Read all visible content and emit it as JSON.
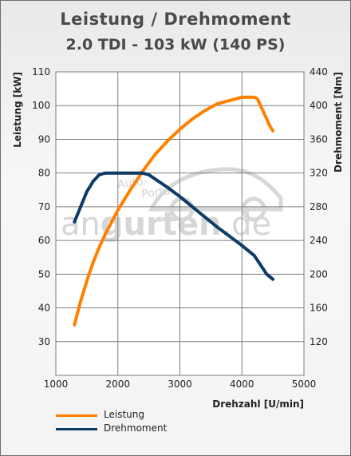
{
  "title": "Leistung / Drehmoment",
  "subtitle": "2.0 TDI - 103 kW (140 PS)",
  "watermark": {
    "line1": "Auto-",
    "line2": "Portal",
    "text_pre": "an",
    "text_mid": "gurten",
    "text_post": ".de"
  },
  "colors": {
    "leistung": "#ff8000",
    "drehmoment": "#0e3a66",
    "grid": "#7d7d7d",
    "plot_bg": "#ffffff",
    "text": "#4a4a4a"
  },
  "chart_data": {
    "type": "line",
    "title": "Leistung / Drehmoment",
    "subtitle": "2.0 TDI - 103 kW (140 PS)",
    "xlabel": "Drehzahl [U/min]",
    "ylabel": "Leistung [kW]",
    "y2label": "Drehmoment [Nm]",
    "xlim": [
      1000,
      5000
    ],
    "ylim": [
      20,
      110
    ],
    "y2lim": [
      80,
      440
    ],
    "x_ticks": [
      1000,
      2000,
      3000,
      4000,
      5000
    ],
    "y_ticks": [
      30,
      40,
      50,
      60,
      70,
      80,
      90,
      100,
      110
    ],
    "y2_ticks": [
      120,
      160,
      200,
      240,
      280,
      320,
      360,
      400,
      440
    ],
    "grid": true,
    "legend_position": "bottom-left",
    "series": [
      {
        "name": "Leistung",
        "axis": "left",
        "x": [
          1300,
          1400,
          1500,
          1600,
          1700,
          1800,
          1900,
          2000,
          2200,
          2400,
          2600,
          2800,
          3000,
          3200,
          3400,
          3600,
          3800,
          4000,
          4100,
          4200,
          4250,
          4350,
          4450,
          4500
        ],
        "y": [
          35,
          42,
          48,
          53.5,
          58,
          62,
          65.5,
          69,
          75,
          80.5,
          85.5,
          89.5,
          93,
          96,
          98.5,
          100.5,
          101.5,
          102.5,
          102.5,
          102.5,
          102,
          98,
          94,
          92.5
        ]
      },
      {
        "name": "Drehmoment",
        "axis": "right",
        "x": [
          1300,
          1400,
          1500,
          1600,
          1700,
          1800,
          1900,
          2000,
          2200,
          2400,
          2500,
          2600,
          2800,
          3000,
          3200,
          3400,
          3600,
          3800,
          4000,
          4200,
          4300,
          4400,
          4500
        ],
        "y": [
          262,
          280,
          298,
          310,
          318,
          320,
          320,
          320,
          320,
          320,
          318,
          313,
          303,
          292,
          280,
          268,
          256,
          245,
          234,
          222,
          211,
          200,
          194
        ]
      }
    ]
  }
}
